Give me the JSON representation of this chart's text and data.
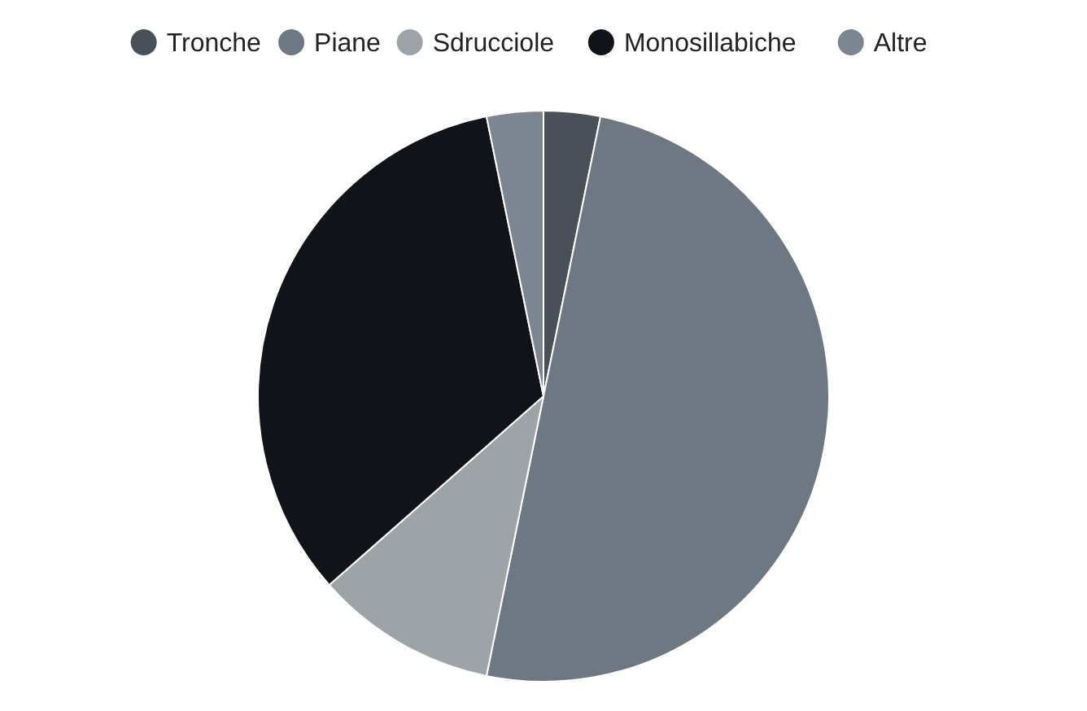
{
  "chart_data": {
    "type": "pie",
    "categories": [
      "Tronche",
      "Piane",
      "Sdrucciole",
      "Monosillabiche",
      "Altre"
    ],
    "values": [
      3.2,
      50,
      10.3,
      33.3,
      3.2
    ],
    "colors": [
      "#4a5057",
      "#6f7882",
      "#9ea3a8",
      "#111318",
      "#7d8590"
    ],
    "legend": "top"
  }
}
